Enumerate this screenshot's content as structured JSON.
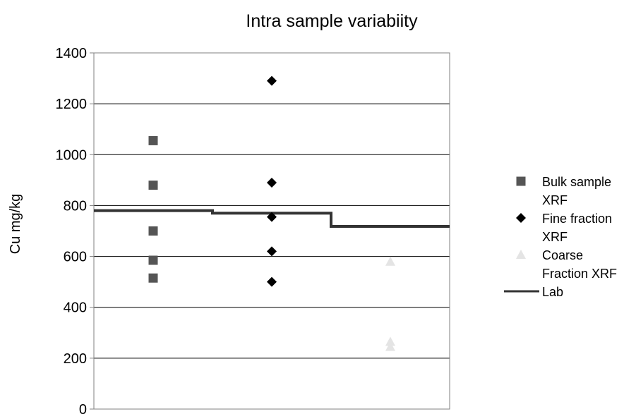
{
  "chart_data": {
    "type": "scatter",
    "title": "Intra sample variabiity",
    "xlabel": "",
    "ylabel": "Cu mg/kg",
    "ylim": [
      0,
      1400
    ],
    "yticks": [
      0,
      200,
      400,
      600,
      800,
      1000,
      1200,
      1400
    ],
    "grid": "horizontal",
    "legend_position": "right",
    "series": [
      {
        "name": "Bulk sample XRF",
        "legend_lines": [
          "Bulk sample",
          "XRF"
        ],
        "marker": "square",
        "color": "#555555",
        "x": [
          1,
          1,
          1,
          1,
          1
        ],
        "values": [
          1055,
          880,
          700,
          585,
          515
        ]
      },
      {
        "name": "Fine fraction XRF",
        "legend_lines": [
          "Fine fraction",
          "XRF"
        ],
        "marker": "diamond",
        "color": "#000000",
        "x": [
          2,
          2,
          2,
          2,
          2
        ],
        "values": [
          1290,
          890,
          755,
          620,
          500
        ]
      },
      {
        "name": "Coarse Fraction XRF",
        "legend_lines": [
          "Coarse",
          "Fraction XRF"
        ],
        "marker": "triangle",
        "color": "#e4e4e4",
        "x": [
          3,
          3,
          3
        ],
        "values": [
          580,
          265,
          245
        ]
      }
    ],
    "lab_line": {
      "name": "Lab",
      "legend_lines": [
        "Lab"
      ],
      "color": "#333333",
      "segments": [
        {
          "x_from": 0.5,
          "x_to": 1.5,
          "value": 780
        },
        {
          "x_from": 1.5,
          "x_to": 2.5,
          "value": 770
        },
        {
          "x_from": 2.5,
          "x_to": 3.5,
          "value": 718
        }
      ]
    }
  }
}
